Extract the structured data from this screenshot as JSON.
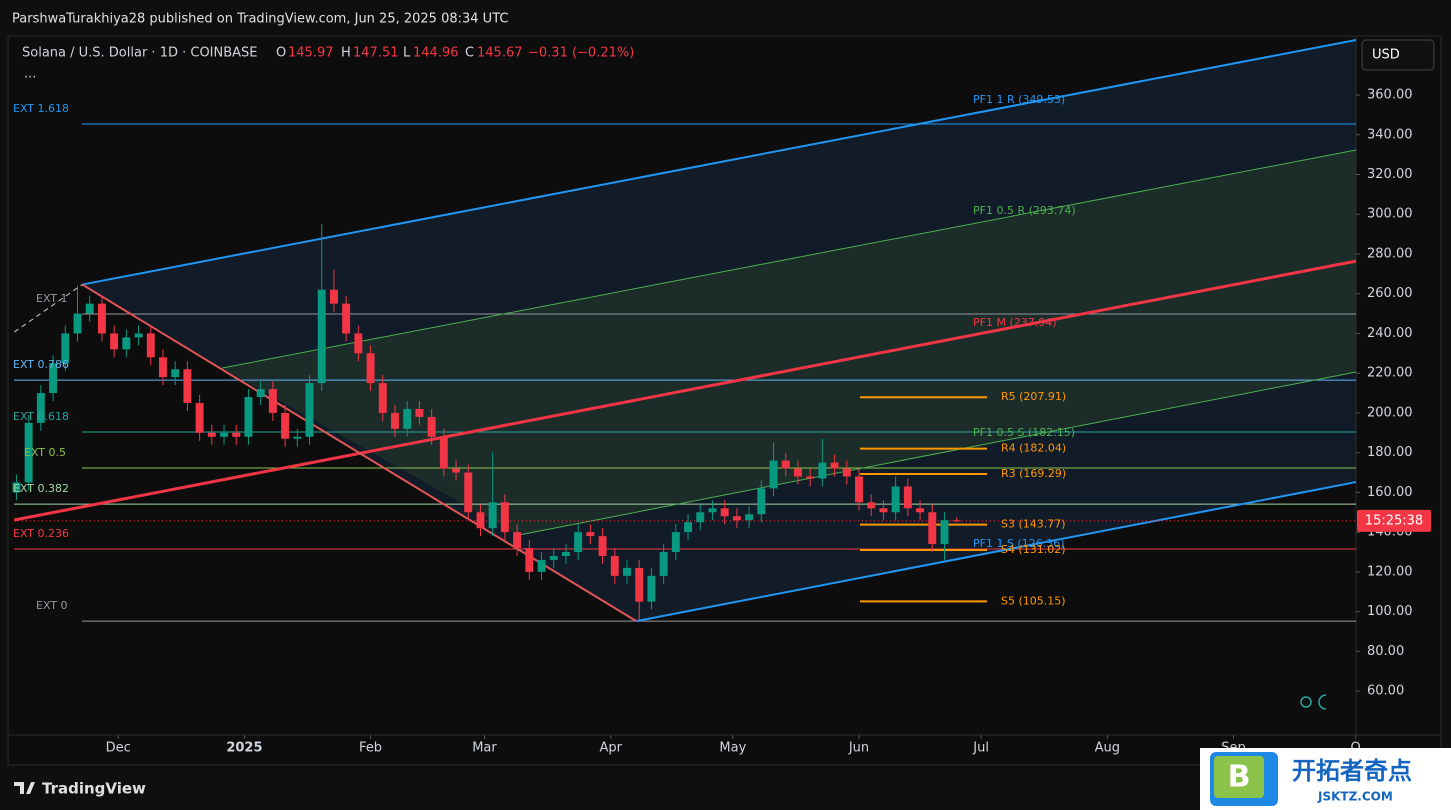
{
  "header": {
    "publisher": "ParshwaTurakhiya28 published on TradingView.com, Jun 25, 2025 08:34 UTC"
  },
  "legend": {
    "symbol": "Solana / U.S. Dollar · 1D · COINBASE",
    "o_label": "O",
    "o": 145.97,
    "h_label": "H",
    "h": 147.51,
    "l_label": "L",
    "l": 144.96,
    "c_label": "C",
    "c": 145.67,
    "change": "−0.31 (−0.21%)",
    "more": "..."
  },
  "currency": "USD",
  "timer": "15:25:38",
  "footer": {
    "brand": "TradingView"
  },
  "watermark": {
    "badge": "B",
    "name": "开拓者奇点",
    "url": "JSKTZ.COM"
  },
  "chart_data": {
    "type": "candlestick",
    "up_color": "#089981",
    "down_color": "#f23645",
    "open": [
      160,
      165,
      195,
      210,
      225,
      240,
      250,
      255,
      240,
      232,
      238,
      240,
      228,
      218,
      222,
      205,
      190,
      188,
      190,
      188,
      208,
      212,
      200,
      187,
      188,
      215,
      262,
      255,
      240,
      230,
      215,
      200,
      192,
      202,
      198,
      188,
      172,
      170,
      150,
      142,
      155,
      140,
      132,
      120,
      126,
      128,
      130,
      140,
      138,
      128,
      118,
      122,
      105,
      118,
      130,
      140,
      145,
      150,
      152,
      148,
      146,
      149,
      162,
      176,
      172,
      168,
      167,
      175,
      172,
      168,
      155,
      152,
      150,
      163,
      152,
      150,
      134,
      145.97
    ],
    "high": [
      169,
      199,
      214,
      229,
      244,
      264,
      259,
      259,
      244,
      242,
      244,
      244,
      232,
      226,
      226,
      209,
      194,
      194,
      194,
      212,
      216,
      216,
      204,
      192,
      219,
      295,
      272,
      259,
      244,
      234,
      219,
      204,
      206,
      206,
      202,
      192,
      176,
      174,
      154,
      180,
      159,
      144,
      136,
      130,
      132,
      134,
      144,
      144,
      142,
      132,
      126,
      126,
      122,
      134,
      144,
      149,
      154,
      156,
      156,
      152,
      153,
      166,
      185,
      180,
      176,
      172,
      187,
      179,
      176,
      172,
      159,
      156,
      168,
      167,
      156,
      154,
      150,
      147.51
    ],
    "low": [
      156,
      161,
      191,
      206,
      221,
      236,
      246,
      236,
      228,
      228,
      234,
      224,
      214,
      214,
      201,
      186,
      184,
      184,
      184,
      184,
      204,
      196,
      183,
      183,
      184,
      211,
      251,
      236,
      226,
      211,
      196,
      188,
      188,
      194,
      184,
      168,
      166,
      146,
      138,
      138,
      136,
      128,
      116,
      116,
      122,
      124,
      126,
      134,
      124,
      114,
      114,
      96,
      101,
      114,
      126,
      136,
      141,
      146,
      144,
      142,
      142,
      145,
      158,
      168,
      164,
      163,
      163,
      168,
      164,
      151,
      148,
      146,
      146,
      148,
      146,
      130,
      126,
      144.96
    ],
    "close": [
      165,
      195,
      210,
      225,
      240,
      250,
      255,
      240,
      232,
      238,
      240,
      228,
      218,
      222,
      205,
      190,
      188,
      190,
      188,
      208,
      212,
      200,
      187,
      188,
      215,
      262,
      255,
      240,
      230,
      215,
      200,
      192,
      202,
      198,
      188,
      172,
      170,
      150,
      142,
      155,
      140,
      132,
      120,
      126,
      128,
      130,
      140,
      138,
      128,
      118,
      122,
      105,
      118,
      130,
      140,
      145,
      150,
      152,
      148,
      146,
      149,
      162,
      176,
      172,
      168,
      167,
      175,
      172,
      168,
      155,
      152,
      150,
      163,
      152,
      150,
      134,
      146,
      145.67
    ],
    "xlim": [
      -0.2,
      109.7
    ],
    "xticks": [
      {
        "value": 8.33,
        "label": "Dec"
      },
      {
        "value": 18.67,
        "label": "2025",
        "bold": true
      },
      {
        "value": 29,
        "label": "Feb"
      },
      {
        "value": 38.33,
        "label": "Mar"
      },
      {
        "value": 48.67,
        "label": "Apr"
      },
      {
        "value": 58.67,
        "label": "May"
      },
      {
        "value": 69,
        "label": "Jun"
      },
      {
        "value": 79,
        "label": "Jul"
      },
      {
        "value": 89.33,
        "label": "Aug"
      },
      {
        "value": 99.67,
        "label": "Sep"
      },
      {
        "value": 109.67,
        "label": "O"
      }
    ],
    "ylim": [
      37.9,
      389.7
    ],
    "yticks": [
      {
        "value": 60,
        "label": "60.00"
      },
      {
        "value": 80,
        "label": "80.00"
      },
      {
        "value": 100,
        "label": "100.00"
      },
      {
        "value": 120,
        "label": "120.00"
      },
      {
        "value": 140,
        "label": "140.00"
      },
      {
        "value": 160,
        "label": "160.00"
      },
      {
        "value": 180,
        "label": "180.00"
      },
      {
        "value": 200,
        "label": "200.00"
      },
      {
        "value": 220,
        "label": "220.00"
      },
      {
        "value": 240,
        "label": "240.00"
      },
      {
        "value": 260,
        "label": "260.00"
      },
      {
        "value": 280,
        "label": "280.00"
      },
      {
        "value": 300,
        "label": "300.00"
      },
      {
        "value": 320,
        "label": "320.00"
      },
      {
        "value": 340,
        "label": "340.00"
      },
      {
        "value": 360,
        "label": "360.00"
      }
    ],
    "levels": [
      {
        "name": "EXT 1.618",
        "value": 345.4,
        "color": "#2196f3"
      },
      {
        "name": "EXT 1",
        "value": 249.8,
        "color": "#9598a1"
      },
      {
        "name": "EXT 0.786",
        "value": 216.5,
        "color": "#64b5f6"
      },
      {
        "name": "EXT 0.618",
        "value": 190.4,
        "color": "#26a69a"
      },
      {
        "name": "EXT 0.5",
        "value": 172.3,
        "color": "#8bc34a"
      },
      {
        "name": "EXT 0.382",
        "value": 154.1,
        "color": "#a5d6a7"
      },
      {
        "name": "EXT 0.236",
        "value": 131.5,
        "color": "#f23645"
      },
      {
        "name": "EXT 0",
        "value": 95.2,
        "color": "#9598a1"
      }
    ],
    "pivots": [
      {
        "value": 207.91,
        "label": "R5 (207.91)"
      },
      {
        "value": 182.04,
        "label": "R4 (182.04)"
      },
      {
        "value": 169.29,
        "label": "R3 (169.29)"
      },
      {
        "value": 143.77,
        "label": "S3 (143.77)"
      },
      {
        "value": 131.02,
        "label": "S4 (131.02)"
      },
      {
        "value": 105.15,
        "label": "S5 (105.15)"
      }
    ],
    "pivot_color": "#ff9800",
    "pitchfork": [
      {
        "color": "#2196f3",
        "width": 2,
        "points": [
          [
            5.39,
            264.6
          ],
          [
            109.7,
            387.7
          ]
        ]
      },
      {
        "color": "#4caf50",
        "width": 1,
        "points": [
          [
            16.85,
            222.6
          ],
          [
            109.7,
            332.3
          ]
        ]
      },
      {
        "color": "#f23645",
        "width": 3,
        "points": [
          [
            -0.18,
            146.1
          ],
          [
            109.7,
            276.4
          ]
        ]
      },
      {
        "color": "#4caf50",
        "width": 1,
        "points": [
          [
            41.1,
            138.5
          ],
          [
            109.7,
            220.6
          ]
        ]
      },
      {
        "color": "#2196f3",
        "width": 2,
        "points": [
          [
            50.76,
            95.2
          ],
          [
            109.7,
            165.2
          ]
        ]
      },
      {
        "color": "#e05555",
        "width": 2,
        "points": [
          [
            5.39,
            264.6
          ],
          [
            50.76,
            95.2
          ]
        ]
      },
      {
        "color": "#cccccc",
        "width": 1,
        "dash": true,
        "points": [
          [
            -0.18,
            240.7
          ],
          [
            5.39,
            264.6
          ]
        ]
      }
    ],
    "pitchfork_labels": [
      {
        "text": "PF1 1 R (349.53)",
        "color": "#2196f3"
      },
      {
        "text": "PF1 0.5 R (293.74)",
        "color": "#4caf50"
      },
      {
        "text": "PF1 M (237.94)",
        "color": "#f23645"
      },
      {
        "text": "PF1 0.5 S (182.15)",
        "color": "#4caf50"
      },
      {
        "text": "PF1 1 S (126.36)",
        "color": "#2196f3"
      }
    ]
  }
}
